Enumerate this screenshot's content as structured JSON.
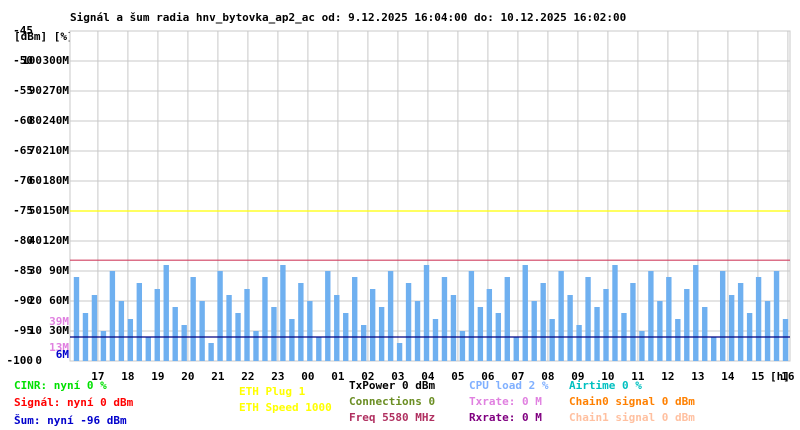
{
  "chart_data": {
    "type": "bar",
    "title": "Signál a šum radia hnv_bytovka_ap2_ac od: 9.12.2025 16:04:00 do: 10.12.2025 16:02:00",
    "y_header": "[dBm] [%]",
    "x_label": "[h]",
    "grid": true,
    "color": "#6fb0f0",
    "xlim": [
      0,
      24
    ],
    "xticks": [
      {
        "value": 0.93,
        "label": "17"
      },
      {
        "value": 1.93,
        "label": "18"
      },
      {
        "value": 2.93,
        "label": "19"
      },
      {
        "value": 3.93,
        "label": "20"
      },
      {
        "value": 4.93,
        "label": "21"
      },
      {
        "value": 5.93,
        "label": "22"
      },
      {
        "value": 6.93,
        "label": "23"
      },
      {
        "value": 7.93,
        "label": "00"
      },
      {
        "value": 8.93,
        "label": "01"
      },
      {
        "value": 9.93,
        "label": "02"
      },
      {
        "value": 10.93,
        "label": "03"
      },
      {
        "value": 11.93,
        "label": "04"
      },
      {
        "value": 12.93,
        "label": "05"
      },
      {
        "value": 13.93,
        "label": "06"
      },
      {
        "value": 14.93,
        "label": "07"
      },
      {
        "value": 15.93,
        "label": "08"
      },
      {
        "value": 16.93,
        "label": "09"
      },
      {
        "value": 17.93,
        "label": "10"
      },
      {
        "value": 18.93,
        "label": "11"
      },
      {
        "value": 19.93,
        "label": "12"
      },
      {
        "value": 20.93,
        "label": "13"
      },
      {
        "value": 21.93,
        "label": "14"
      },
      {
        "value": 22.93,
        "label": "15"
      },
      {
        "value": 23.93,
        "label": "16"
      }
    ],
    "ylim": [
      -100,
      -45
    ],
    "yticks": [
      -45,
      -50,
      -55,
      -60,
      -65,
      -70,
      -75,
      -80,
      -85,
      -90,
      -95,
      -100
    ],
    "y2lim": [
      0,
      110
    ],
    "y2ticks": [
      0,
      10,
      20,
      30,
      40,
      50,
      60,
      70,
      80,
      90,
      100
    ],
    "y3lim": [
      0,
      330
    ],
    "y3ticks": [
      {
        "value": 30,
        "label": "30M"
      },
      {
        "value": 60,
        "label": "60M"
      },
      {
        "value": 90,
        "label": "90M"
      },
      {
        "value": 120,
        "label": "120M"
      },
      {
        "value": 150,
        "label": "150M"
      },
      {
        "value": 180,
        "label": "180M"
      },
      {
        "value": 210,
        "label": "210M"
      },
      {
        "value": 240,
        "label": "240M"
      },
      {
        "value": 270,
        "label": "270M"
      },
      {
        "value": 300,
        "label": "300M"
      }
    ],
    "rate_markers": [
      {
        "value": 39,
        "label": "39M",
        "color": "#e080e0"
      },
      {
        "value": 13,
        "label": "13M",
        "color": "#e080e0"
      },
      {
        "value": 6,
        "label": "6M",
        "color": "#0000cc"
      }
    ],
    "lines": [
      {
        "value": -75,
        "color": "#ffff00"
      },
      {
        "value": -83.2,
        "color": "#d04060"
      },
      {
        "value": -96,
        "color": "#000080"
      }
    ],
    "values": [
      -86,
      -92,
      -89,
      -95,
      -85,
      -90,
      -93,
      -87,
      -96,
      -88,
      -84,
      -91,
      -94,
      -86,
      -90,
      -97,
      -85,
      -89,
      -92,
      -88,
      -95,
      -86,
      -91,
      -84,
      -93,
      -87,
      -90,
      -96,
      -85,
      -89,
      -92,
      -86,
      -94,
      -88,
      -91,
      -85,
      -97,
      -87,
      -90,
      -84,
      -93,
      -86,
      -89,
      -95,
      -85,
      -91,
      -88,
      -92,
      -86,
      -96,
      -84,
      -90,
      -87,
      -93,
      -85,
      -89,
      -94,
      -86,
      -91,
      -88,
      -84,
      -92,
      -87,
      -95,
      -85,
      -90,
      -86,
      -93,
      -88,
      -84,
      -91,
      -96,
      -85,
      -89,
      -87,
      -92,
      -86,
      -90,
      -85,
      -93
    ],
    "legend": [
      {
        "text": "CINR: nyní 0 %",
        "color": "#00e000"
      },
      {
        "text": "Signál: nyní 0 dBm",
        "color": "#ff0000"
      },
      {
        "text": "Šum: nyní -96 dBm",
        "color": "#0000cc"
      },
      {
        "text": "ETH Plug 1",
        "color": "#ffff00"
      },
      {
        "text": "ETH Speed 1000",
        "color": "#ffff00"
      },
      {
        "text": "TxPower 0 dBm",
        "color": "#000000"
      },
      {
        "text": "Connections 0",
        "color": "#6b8e23"
      },
      {
        "text": "Freq 5580 MHz",
        "color": "#b03060"
      },
      {
        "text": "CPU load 2 %",
        "color": "#80b0ff"
      },
      {
        "text": "Txrate: 0 M",
        "color": "#e080e0"
      },
      {
        "text": "Rxrate: 0 M",
        "color": "#800080"
      },
      {
        "text": "Airtime 0 %",
        "color": "#00c0c0"
      },
      {
        "text": "Chain0 signal 0 dBm",
        "color": "#ff8000"
      },
      {
        "text": "Chain1 signal 0 dBm",
        "color": "#ffc0a0"
      }
    ]
  }
}
